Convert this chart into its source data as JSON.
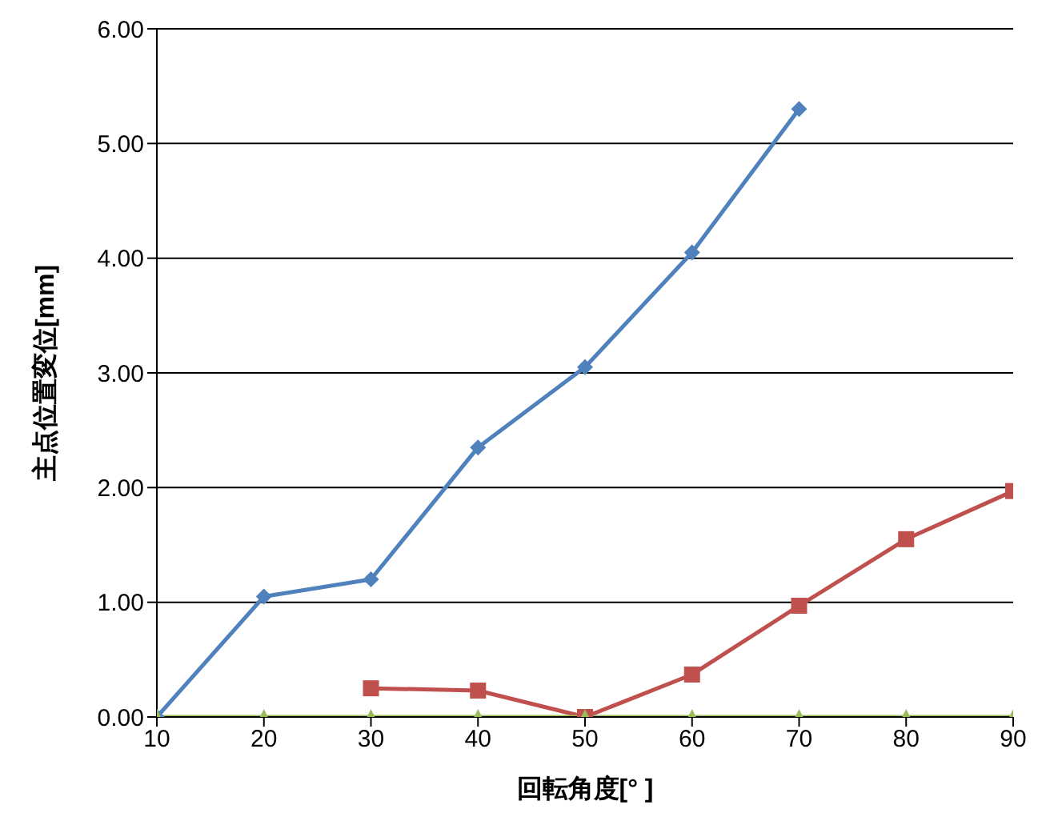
{
  "chart_data": {
    "type": "line",
    "xlabel": "回転角度[° ]",
    "ylabel": "主点位置変位[mm]",
    "x": [
      10,
      20,
      30,
      40,
      50,
      60,
      70,
      80,
      90
    ],
    "series": [
      {
        "color": "#c0504d",
        "marker": "square",
        "values": [
          null,
          null,
          0.25,
          0.23,
          0.0,
          0.37,
          0.97,
          1.55,
          1.97
        ]
      },
      {
        "color": "#4f81bd",
        "marker": "diamond",
        "values": [
          0,
          1.05,
          1.2,
          2.35,
          3.05,
          4.05,
          5.3,
          null,
          null
        ]
      },
      {
        "color": "#9bbb59",
        "marker": "triangle",
        "values": [
          0,
          0,
          0,
          0,
          0,
          0,
          0,
          0,
          0
        ]
      }
    ],
    "xlim": [
      10,
      90
    ],
    "xticks": [
      10,
      20,
      30,
      40,
      50,
      60,
      70,
      80,
      90
    ],
    "ylim": [
      0,
      6
    ],
    "yticks": [
      {
        "value": 0,
        "label": "0.00"
      },
      {
        "value": 1,
        "label": "1.00"
      },
      {
        "value": 2,
        "label": "2.00"
      },
      {
        "value": 3,
        "label": "3.00"
      },
      {
        "value": 4,
        "label": "4.00"
      },
      {
        "value": 5,
        "label": "5.00"
      },
      {
        "value": 6,
        "label": "6.00"
      }
    ],
    "grid": "y",
    "line_style": "solid"
  }
}
